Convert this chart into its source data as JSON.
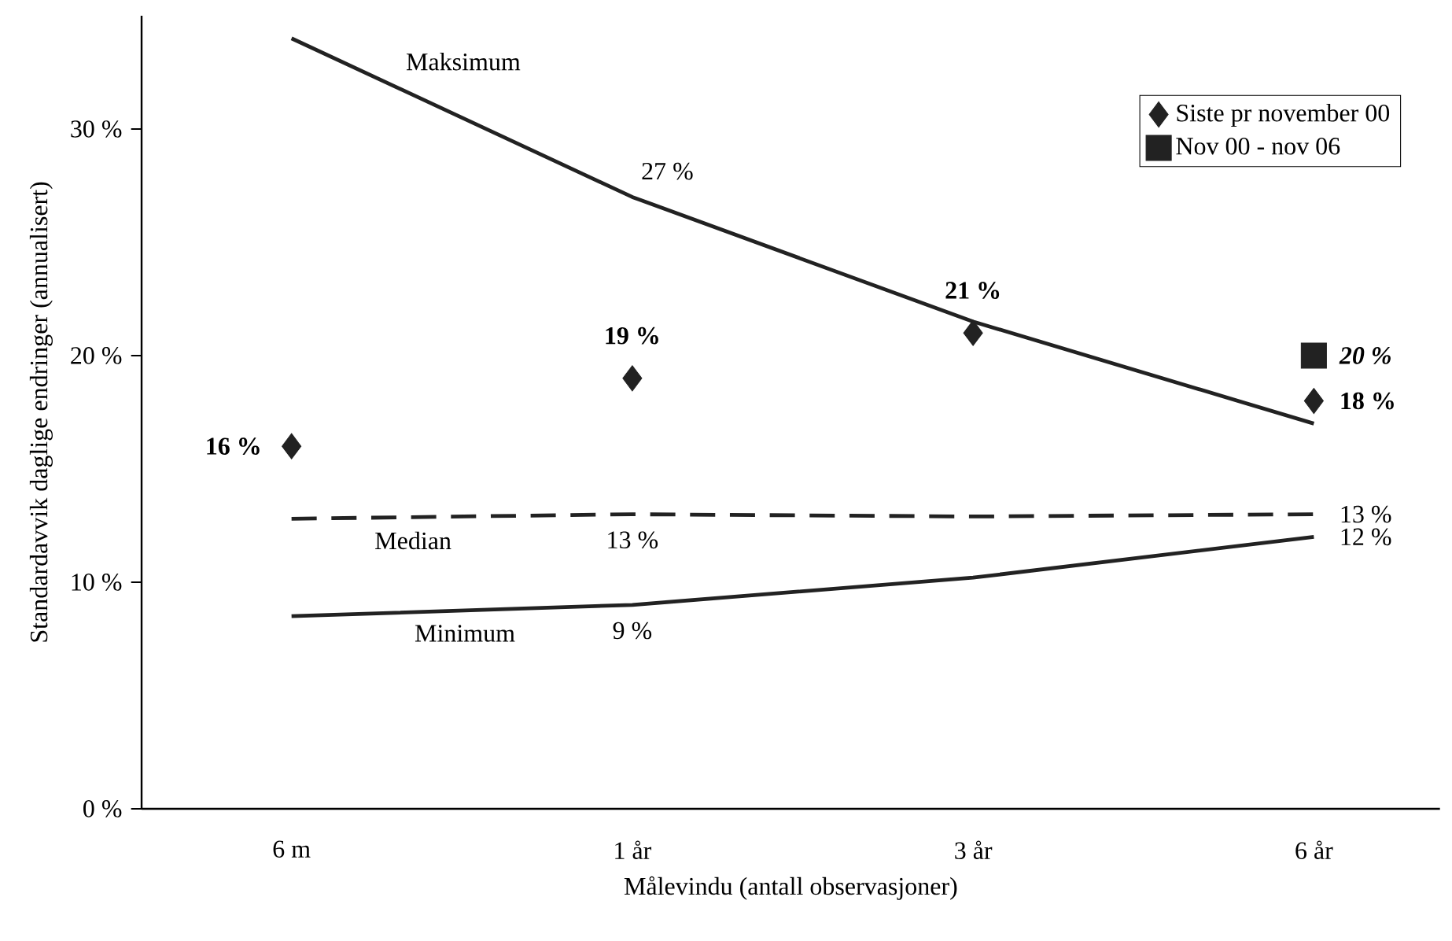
{
  "chart_data": {
    "type": "line",
    "xlabel": "Målevindu  (antall observasjoner)",
    "ylabel": "Standardavvik daglige endringer (annualisert)",
    "categories": [
      "6 m",
      "1 år",
      "3 år",
      "6 år"
    ],
    "ylim": [
      0,
      35
    ],
    "yticks": [
      {
        "value": 0,
        "label": "0 %"
      },
      {
        "value": 10,
        "label": "10 %"
      },
      {
        "value": 20,
        "label": "20 %"
      },
      {
        "value": 30,
        "label": "30 %"
      }
    ],
    "legend": "top right",
    "series": [
      {
        "name": "Maksimum",
        "color": "#222222",
        "marker": "none",
        "line_style": "solid",
        "values": [
          34,
          27,
          21.5,
          17
        ],
        "value_labels": [
          null,
          "27 %",
          null,
          null
        ]
      },
      {
        "name": "Median",
        "color": "#222222",
        "marker": "none",
        "line_style": "dashed",
        "values": [
          12.8,
          13,
          12.9,
          13
        ],
        "value_labels": [
          null,
          "13 %",
          null,
          "13 %"
        ]
      },
      {
        "name": "Minimum",
        "color": "#222222",
        "marker": "none",
        "line_style": "solid",
        "values": [
          8.5,
          9,
          10.2,
          12
        ],
        "value_labels": [
          null,
          "9 %",
          null,
          "12 %"
        ]
      },
      {
        "name": "Siste pr november 00",
        "type": "scatter",
        "color": "#222222",
        "marker": "diamond",
        "values": [
          16,
          19,
          21,
          18
        ],
        "value_labels": [
          "16 %",
          "19 %",
          "21 %",
          "18 %"
        ]
      },
      {
        "name": "Nov 00 - nov 06",
        "type": "scatter",
        "color": "#222222",
        "marker": "square",
        "values": [
          null,
          null,
          null,
          20
        ],
        "value_labels": [
          null,
          null,
          null,
          "20 %"
        ]
      }
    ]
  }
}
